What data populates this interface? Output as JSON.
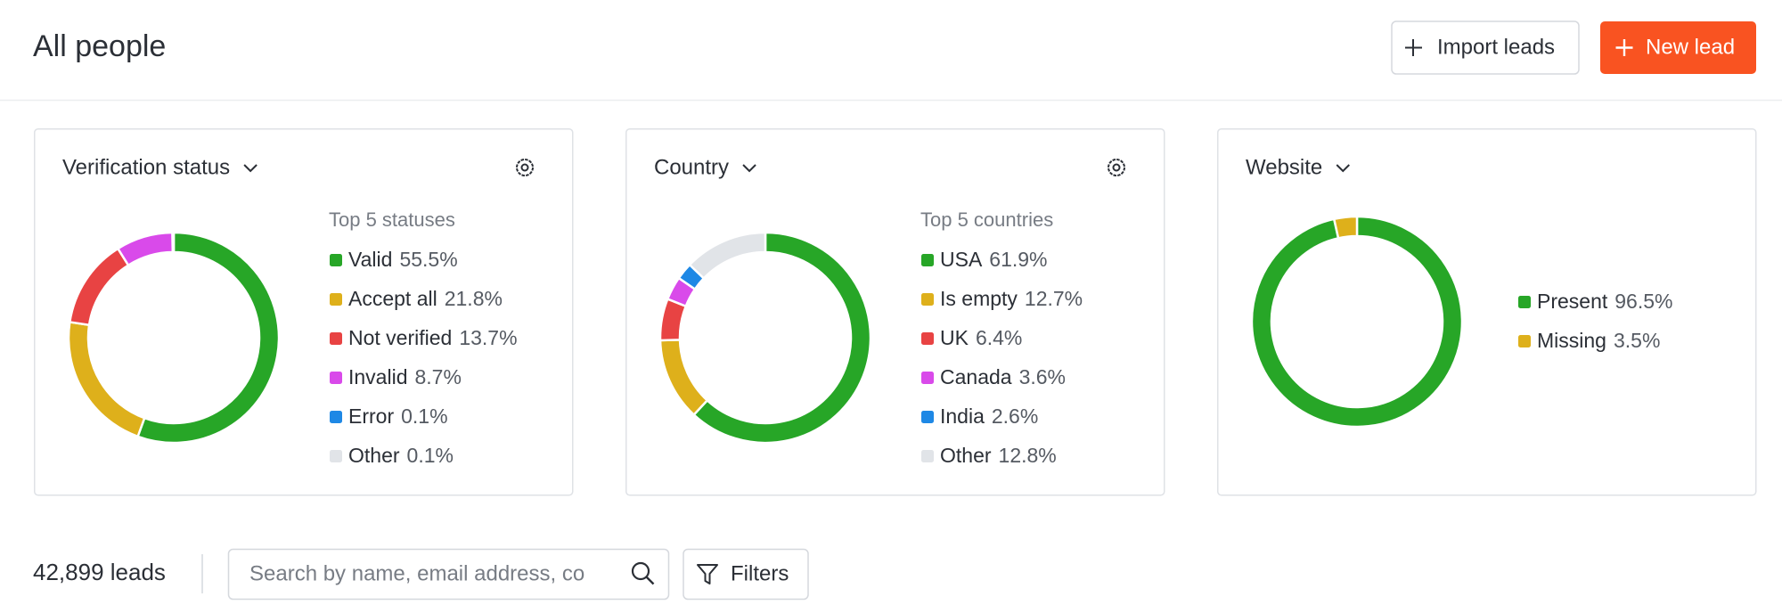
{
  "header": {
    "title": "All people",
    "import_button": "Import leads",
    "new_button": "New lead"
  },
  "chart_data": [
    {
      "type": "donut",
      "title": "Verification status",
      "subtitle": "Top 5 statuses",
      "categories": [
        "Valid",
        "Accept all",
        "Not verified",
        "Invalid",
        "Error",
        "Other"
      ],
      "values": [
        55.5,
        21.8,
        13.7,
        8.7,
        0.1,
        0.1
      ],
      "value_labels": [
        "55.5%",
        "21.8%",
        "13.7%",
        "8.7%",
        "0.1%",
        "0.1%"
      ],
      "colors": [
        "#27a627",
        "#deb01b",
        "#e84343",
        "#d94aea",
        "#1e88e5",
        "#e1e4e8"
      ]
    },
    {
      "type": "donut",
      "title": "Country",
      "subtitle": "Top 5 countries",
      "categories": [
        "USA",
        "Is empty",
        "UK",
        "Canada",
        "India",
        "Other"
      ],
      "values": [
        61.9,
        12.7,
        6.4,
        3.6,
        2.6,
        12.8
      ],
      "value_labels": [
        "61.9%",
        "12.7%",
        "6.4%",
        "3.6%",
        "2.6%",
        "12.8%"
      ],
      "colors": [
        "#27a627",
        "#deb01b",
        "#e84343",
        "#d94aea",
        "#1e88e5",
        "#e1e4e8"
      ]
    },
    {
      "type": "donut",
      "title": "Website",
      "categories": [
        "Present",
        "Missing"
      ],
      "values": [
        96.5,
        3.5
      ],
      "value_labels": [
        "96.5%",
        "3.5%"
      ],
      "colors": [
        "#27a627",
        "#deb01b"
      ]
    }
  ],
  "toolbar": {
    "lead_count": "42,899 leads",
    "search_placeholder": "Search by name, email address, co",
    "filters_button": "Filters"
  }
}
